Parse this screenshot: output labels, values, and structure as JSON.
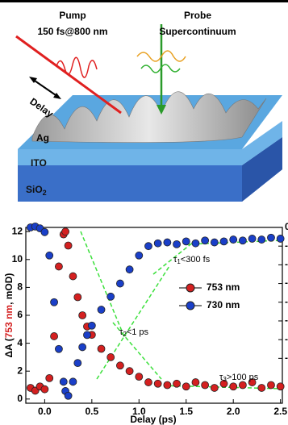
{
  "schematic": {
    "pump": "Pump",
    "pump_spec": "150 fs@800 nm",
    "probe": "Probe",
    "probe_spec": "Supercontinuum",
    "delay": "Delay",
    "layers": {
      "ag": "Ag",
      "ito": "ITO",
      "sio2": "SiO",
      "sio2_sub": "2"
    }
  },
  "chart_data": {
    "type": "scatter",
    "xlabel": "Delay (ps)",
    "ylabel": {
      "start": "ΔA (",
      "colored": "753 nm",
      "end": ", mOD)"
    },
    "x": [
      -0.15,
      -0.1,
      -0.05,
      0,
      0.05,
      0.1,
      0.15,
      0.2,
      0.22,
      0.25,
      0.3,
      0.35,
      0.4,
      0.45,
      0.5,
      0.6,
      0.7,
      0.8,
      0.9,
      1.0,
      1.1,
      1.2,
      1.3,
      1.4,
      1.5,
      1.6,
      1.7,
      1.8,
      1.9,
      2.0,
      2.1,
      2.2,
      2.3,
      2.4,
      2.5
    ],
    "series": [
      {
        "name": "753 nm",
        "color": "#d42020",
        "axis": "y",
        "values": [
          0.8,
          0.6,
          0.9,
          0.7,
          1.5,
          4.5,
          9.5,
          11.8,
          12.0,
          11.0,
          8.8,
          7.3,
          6.0,
          5.2,
          4.6,
          3.6,
          3.0,
          2.4,
          2.0,
          1.6,
          1.2,
          1.1,
          1.0,
          1.1,
          0.9,
          1.2,
          1.0,
          0.8,
          1.1,
          0.9,
          1.0,
          1.2,
          0.8,
          1.0,
          0.9
        ]
      },
      {
        "name": "730 nm",
        "color": "#1a3fc8",
        "axis": "y2",
        "values": [
          0.0,
          0.1,
          -0.1,
          -0.5,
          -3,
          -8,
          -13,
          -16.5,
          -17.5,
          -18,
          -16.5,
          -14.5,
          -12.8,
          -11.5,
          -10.5,
          -8.8,
          -7.4,
          -6.0,
          -4.5,
          -3.0,
          -2.0,
          -1.7,
          -1.6,
          -1.8,
          -1.5,
          -1.7,
          -1.4,
          -1.6,
          -1.5,
          -1.3,
          -1.4,
          -1.2,
          -1.3,
          -1.1,
          -1.2
        ]
      }
    ],
    "xlim": [
      -0.2,
      2.52
    ],
    "xticks": [
      {
        "value": 0,
        "label": "0.0"
      },
      0.5,
      {
        "value": 1,
        "label": "1.0"
      },
      1.5,
      {
        "value": 2,
        "label": "2.0"
      },
      2.5
    ],
    "ylim": [
      -0.3,
      12.3
    ],
    "yticks": [
      0,
      2,
      4,
      6,
      8,
      10,
      12
    ],
    "y2lim": [
      -18.8,
      0
    ],
    "y2ticks": [
      0,
      -2,
      -4,
      -6,
      -8,
      -10,
      -12,
      -14
    ],
    "annotations": [
      {
        "tau": "τ",
        "sub": "1",
        "rest": "<300 fs"
      },
      {
        "tau": "τ",
        "sub": "2",
        "rest": "<1 ps"
      },
      {
        "tau": "τ",
        "sub": "3",
        "rest": ">100 ps"
      }
    ]
  }
}
